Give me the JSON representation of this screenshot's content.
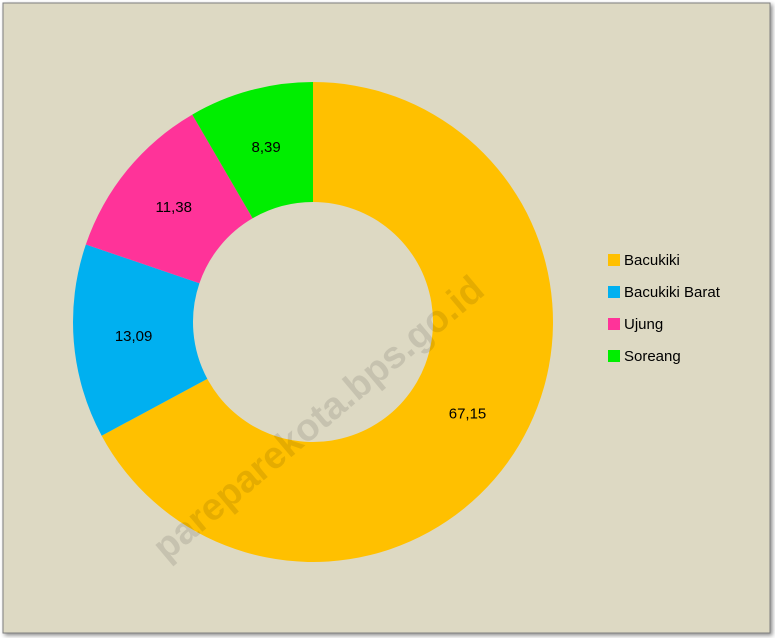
{
  "chart_data": {
    "type": "donut",
    "categories": [
      "Bacukiki",
      "Bacukiki Barat",
      "Ujung",
      "Soreang"
    ],
    "values": [
      67.15,
      13.09,
      11.38,
      8.39
    ],
    "value_labels": [
      "67,15",
      "13,09",
      "11,38",
      "8,39"
    ],
    "colors": [
      "#ffc000",
      "#00b0f0",
      "#ff3399",
      "#00ee00"
    ],
    "legend": "right",
    "watermark": "pareparekota.bps.go.id"
  }
}
